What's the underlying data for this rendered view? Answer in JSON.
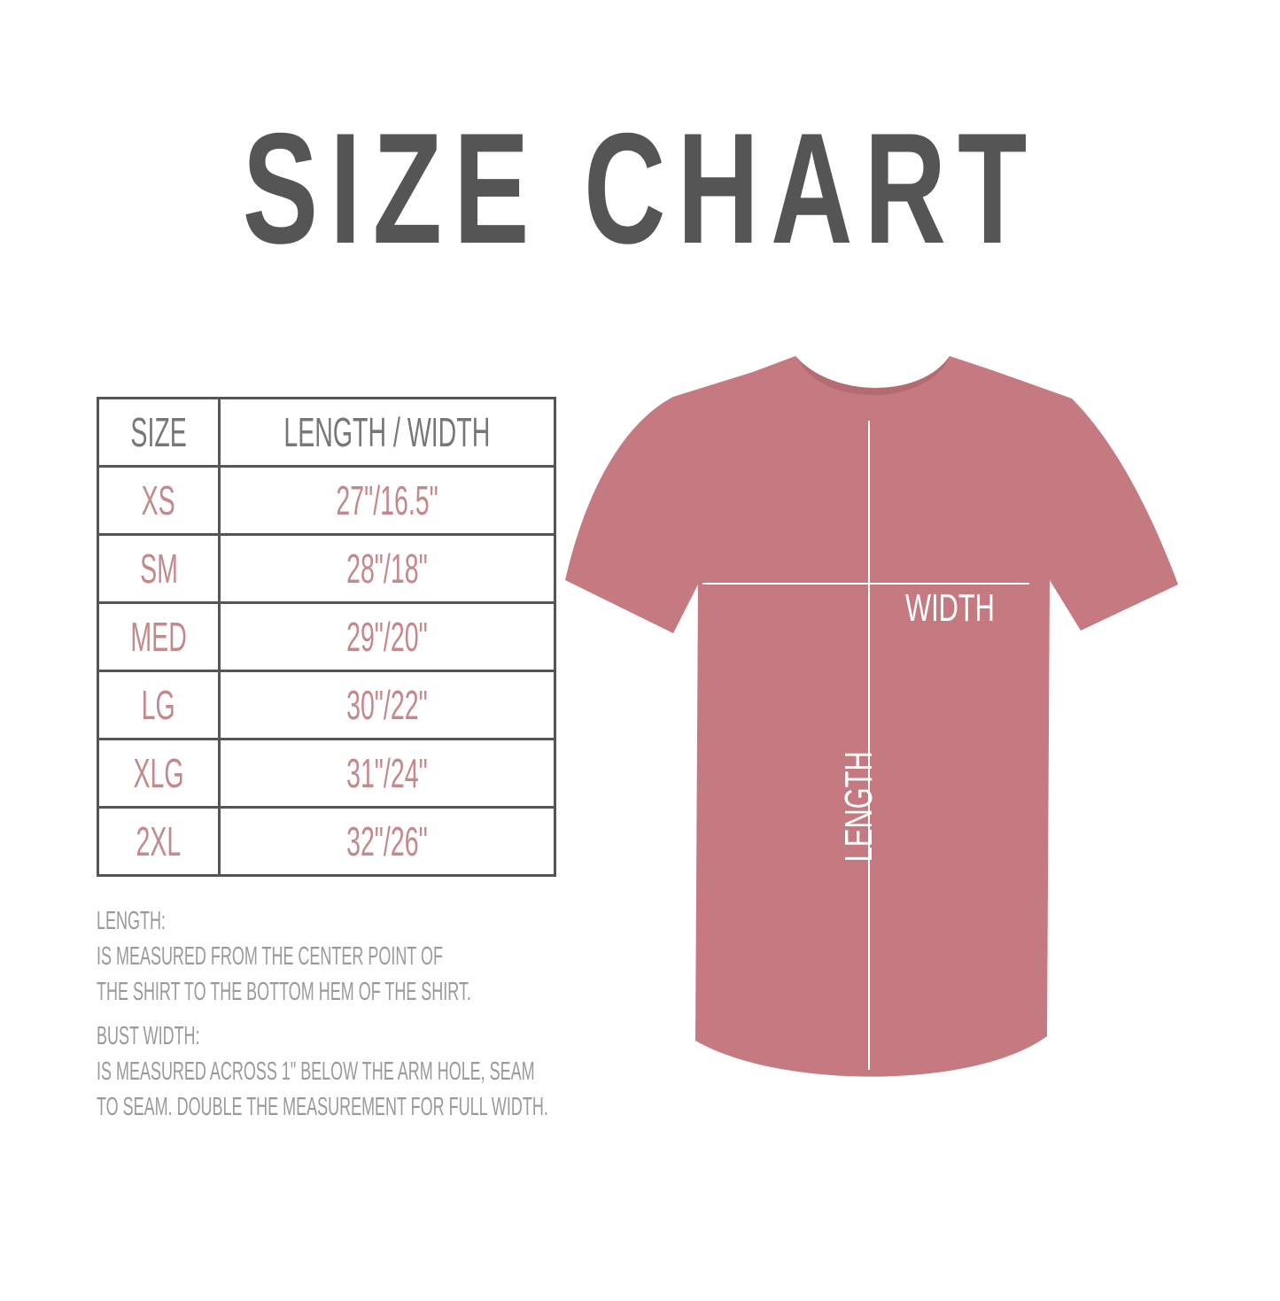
{
  "title": "SIZE CHART",
  "table": {
    "headers": [
      "SIZE",
      "LENGTH / WIDTH"
    ],
    "rows": [
      {
        "size": "XS",
        "measure": "27\"/16.5\""
      },
      {
        "size": "SM",
        "measure": "28\"/18\""
      },
      {
        "size": "MED",
        "measure": "29\"/20\""
      },
      {
        "size": "LG",
        "measure": "30\"/22\""
      },
      {
        "size": "XLG",
        "measure": "31\"/24\""
      },
      {
        "size": "2XL",
        "measure": "32\"/26\""
      }
    ]
  },
  "notes": {
    "length_heading": "LENGTH:",
    "length_lines": [
      "IS MEASURED FROM THE CENTER POINT OF",
      "THE SHIRT TO THE BOTTOM HEM OF THE SHIRT."
    ],
    "width_heading": "BUST WIDTH:",
    "width_lines": [
      "IS MEASURED ACROSS  1\" BELOW THE ARM HOLE, SEAM",
      "TO SEAM. DOUBLE THE MEASUREMENT FOR FULL WIDTH."
    ]
  },
  "shirt": {
    "color": "#c47a80",
    "width_label": "WIDTH",
    "length_label": "LENGTH"
  },
  "colors": {
    "title": "#555555",
    "size_values": "#c4898b",
    "header": "#777777",
    "notes": "#9a9a9a"
  }
}
